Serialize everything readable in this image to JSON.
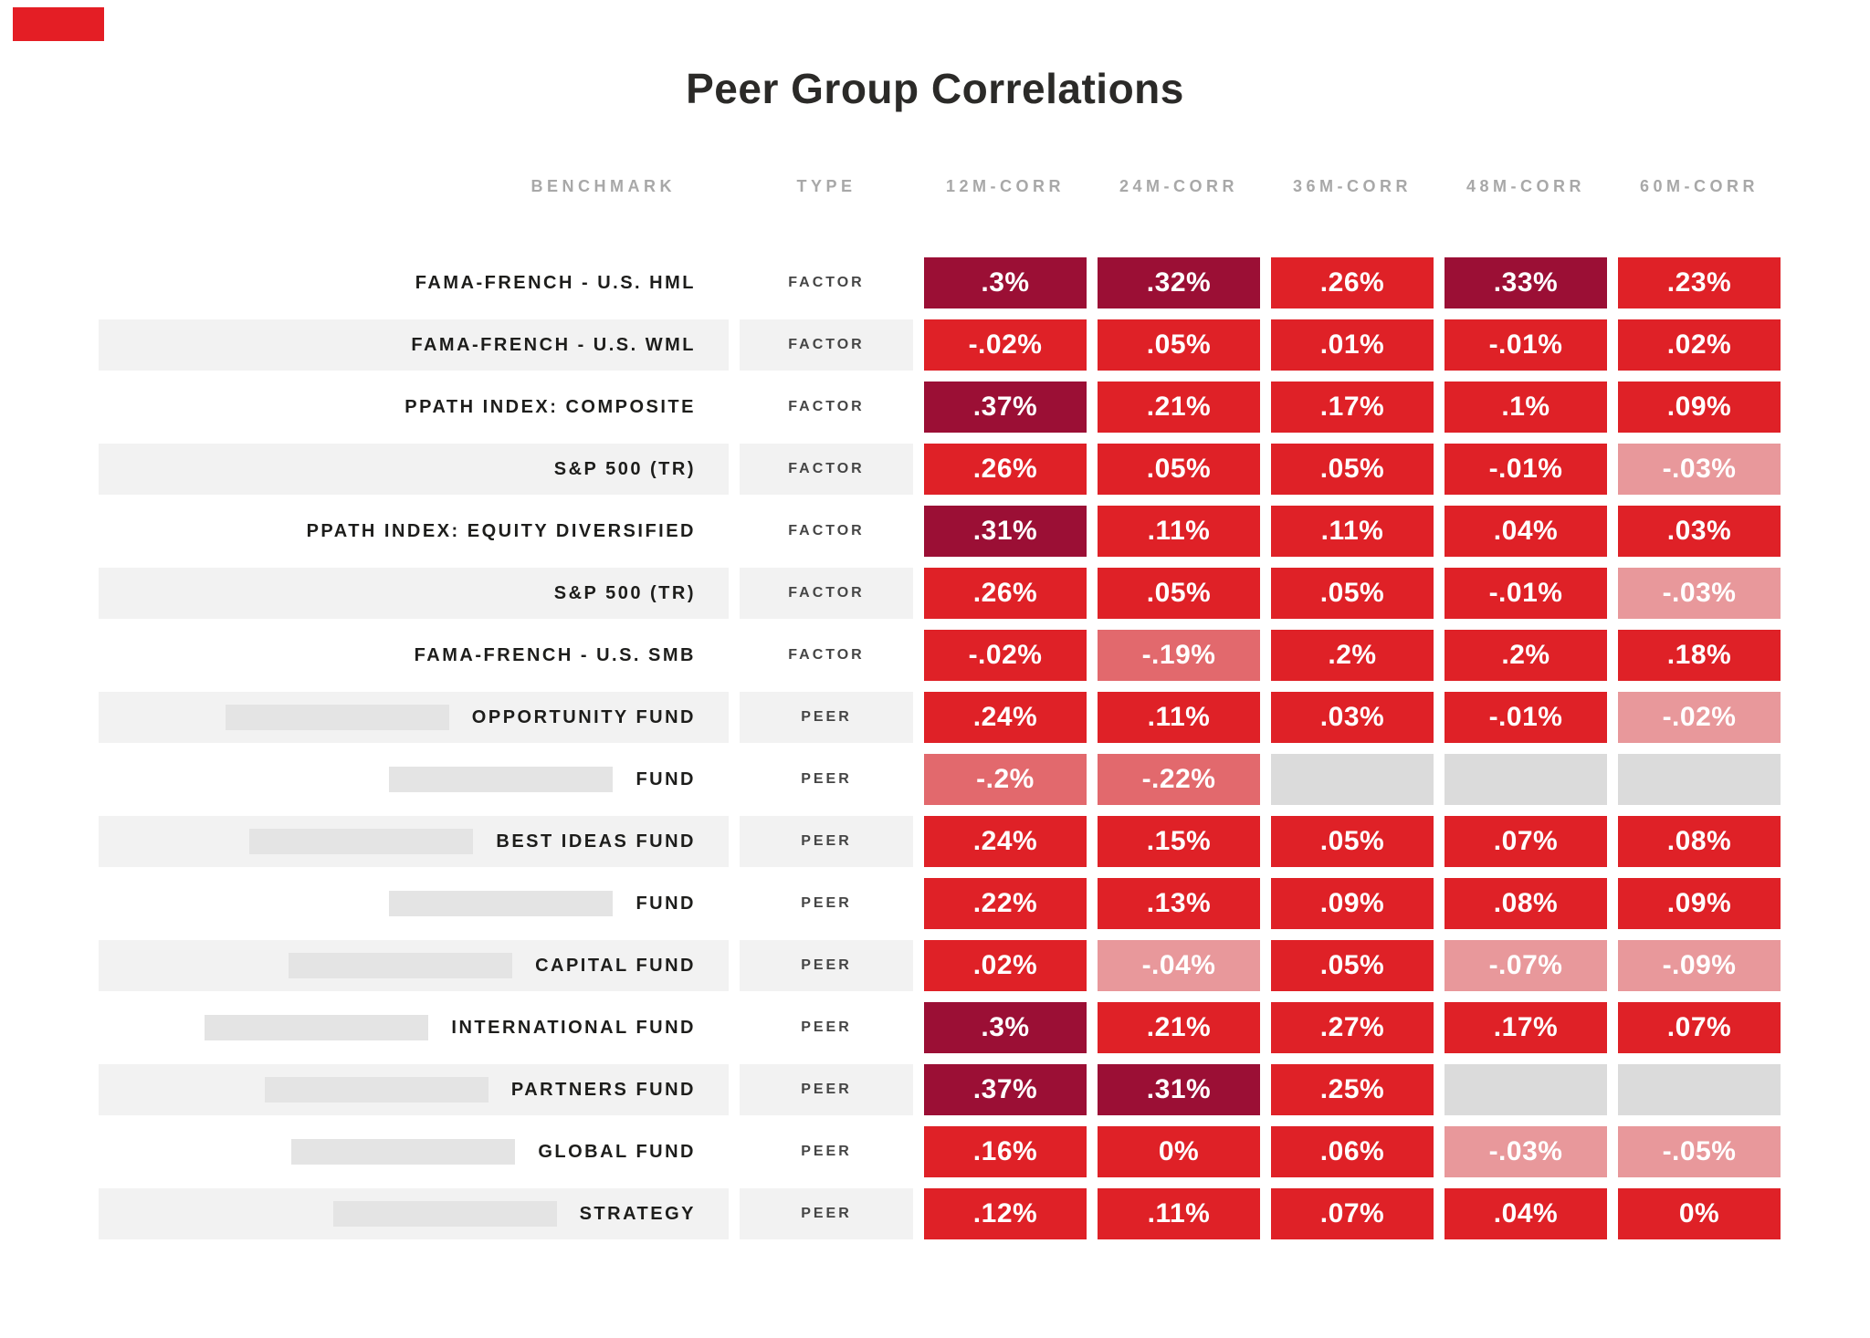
{
  "page": {
    "title": "Peer Group Correlations"
  },
  "colors": {
    "brand_block": "#E41E25",
    "corr_strong_dark": "#9B0F35",
    "corr_red": "#DF2127",
    "corr_pink": "#E2696D",
    "corr_light_pink": "#E8989B",
    "empty_cell_gray": "#DBDBDB",
    "stripe_gray": "#F2F2F2",
    "redaction_gray": "#E4E4E4",
    "header_text": "#A8A8A8",
    "title_text": "#2B2A28"
  },
  "columns": [
    "BENCHMARK",
    "TYPE",
    "12M-CORR",
    "24M-CORR",
    "36M-CORR",
    "48M-CORR",
    "60M-CORR"
  ],
  "rows": [
    {
      "benchmark": "FAMA-FRENCH - U.S. HML",
      "redacted": false,
      "type": "FACTOR",
      "striped": false,
      "values": [
        {
          "label": ".3%",
          "tint": "dark"
        },
        {
          "label": ".32%",
          "tint": "dark"
        },
        {
          "label": ".26%",
          "tint": "red"
        },
        {
          "label": ".33%",
          "tint": "dark"
        },
        {
          "label": ".23%",
          "tint": "red"
        }
      ]
    },
    {
      "benchmark": "FAMA-FRENCH - U.S. WML",
      "redacted": false,
      "type": "FACTOR",
      "striped": true,
      "values": [
        {
          "label": "-.02%",
          "tint": "red"
        },
        {
          "label": ".05%",
          "tint": "red"
        },
        {
          "label": ".01%",
          "tint": "red"
        },
        {
          "label": "-.01%",
          "tint": "red"
        },
        {
          "label": ".02%",
          "tint": "red"
        }
      ]
    },
    {
      "benchmark": "PPATH INDEX: COMPOSITE",
      "redacted": false,
      "type": "FACTOR",
      "striped": false,
      "values": [
        {
          "label": ".37%",
          "tint": "dark"
        },
        {
          "label": ".21%",
          "tint": "red"
        },
        {
          "label": ".17%",
          "tint": "red"
        },
        {
          "label": ".1%",
          "tint": "red"
        },
        {
          "label": ".09%",
          "tint": "red"
        }
      ]
    },
    {
      "benchmark": "S&P 500 (TR)",
      "redacted": false,
      "type": "FACTOR",
      "striped": true,
      "values": [
        {
          "label": ".26%",
          "tint": "red"
        },
        {
          "label": ".05%",
          "tint": "red"
        },
        {
          "label": ".05%",
          "tint": "red"
        },
        {
          "label": "-.01%",
          "tint": "red"
        },
        {
          "label": "-.03%",
          "tint": "lightpink"
        }
      ]
    },
    {
      "benchmark": "PPATH INDEX: EQUITY DIVERSIFIED",
      "redacted": false,
      "type": "FACTOR",
      "striped": false,
      "values": [
        {
          "label": ".31%",
          "tint": "dark"
        },
        {
          "label": ".11%",
          "tint": "red"
        },
        {
          "label": ".11%",
          "tint": "red"
        },
        {
          "label": ".04%",
          "tint": "red"
        },
        {
          "label": ".03%",
          "tint": "red"
        }
      ]
    },
    {
      "benchmark": "S&P 500 (TR)",
      "redacted": false,
      "type": "FACTOR",
      "striped": true,
      "values": [
        {
          "label": ".26%",
          "tint": "red"
        },
        {
          "label": ".05%",
          "tint": "red"
        },
        {
          "label": ".05%",
          "tint": "red"
        },
        {
          "label": "-.01%",
          "tint": "red"
        },
        {
          "label": "-.03%",
          "tint": "lightpink"
        }
      ]
    },
    {
      "benchmark": "FAMA-FRENCH - U.S. SMB",
      "redacted": false,
      "type": "FACTOR",
      "striped": false,
      "values": [
        {
          "label": "-.02%",
          "tint": "red"
        },
        {
          "label": "-.19%",
          "tint": "pink"
        },
        {
          "label": ".2%",
          "tint": "red"
        },
        {
          "label": ".2%",
          "tint": "red"
        },
        {
          "label": ".18%",
          "tint": "red"
        }
      ]
    },
    {
      "benchmark": "OPPORTUNITY FUND",
      "redacted": true,
      "type": "PEER",
      "striped": true,
      "values": [
        {
          "label": ".24%",
          "tint": "red"
        },
        {
          "label": ".11%",
          "tint": "red"
        },
        {
          "label": ".03%",
          "tint": "red"
        },
        {
          "label": "-.01%",
          "tint": "red"
        },
        {
          "label": "-.02%",
          "tint": "lightpink"
        }
      ]
    },
    {
      "benchmark": "FUND",
      "redacted": true,
      "type": "PEER",
      "striped": false,
      "values": [
        {
          "label": "-.2%",
          "tint": "pink"
        },
        {
          "label": "-.22%",
          "tint": "pink"
        },
        {
          "label": "",
          "tint": "empty"
        },
        {
          "label": "",
          "tint": "empty"
        },
        {
          "label": "",
          "tint": "empty"
        }
      ]
    },
    {
      "benchmark": "BEST IDEAS FUND",
      "redacted": true,
      "type": "PEER",
      "striped": true,
      "values": [
        {
          "label": ".24%",
          "tint": "red"
        },
        {
          "label": ".15%",
          "tint": "red"
        },
        {
          "label": ".05%",
          "tint": "red"
        },
        {
          "label": ".07%",
          "tint": "red"
        },
        {
          "label": ".08%",
          "tint": "red"
        }
      ]
    },
    {
      "benchmark": "FUND",
      "redacted": true,
      "type": "PEER",
      "striped": false,
      "values": [
        {
          "label": ".22%",
          "tint": "red"
        },
        {
          "label": ".13%",
          "tint": "red"
        },
        {
          "label": ".09%",
          "tint": "red"
        },
        {
          "label": ".08%",
          "tint": "red"
        },
        {
          "label": ".09%",
          "tint": "red"
        }
      ]
    },
    {
      "benchmark": "CAPITAL FUND",
      "redacted": true,
      "type": "PEER",
      "striped": true,
      "values": [
        {
          "label": ".02%",
          "tint": "red"
        },
        {
          "label": "-.04%",
          "tint": "lightpink"
        },
        {
          "label": ".05%",
          "tint": "red"
        },
        {
          "label": "-.07%",
          "tint": "lightpink"
        },
        {
          "label": "-.09%",
          "tint": "lightpink"
        }
      ]
    },
    {
      "benchmark": "INTERNATIONAL FUND",
      "redacted": true,
      "type": "PEER",
      "striped": false,
      "values": [
        {
          "label": ".3%",
          "tint": "dark"
        },
        {
          "label": ".21%",
          "tint": "red"
        },
        {
          "label": ".27%",
          "tint": "red"
        },
        {
          "label": ".17%",
          "tint": "red"
        },
        {
          "label": ".07%",
          "tint": "red"
        }
      ]
    },
    {
      "benchmark": "PARTNERS FUND",
      "redacted": true,
      "type": "PEER",
      "striped": true,
      "values": [
        {
          "label": ".37%",
          "tint": "dark"
        },
        {
          "label": ".31%",
          "tint": "dark"
        },
        {
          "label": ".25%",
          "tint": "red"
        },
        {
          "label": "",
          "tint": "empty"
        },
        {
          "label": "",
          "tint": "empty"
        }
      ]
    },
    {
      "benchmark": "GLOBAL FUND",
      "redacted": true,
      "type": "PEER",
      "striped": false,
      "values": [
        {
          "label": ".16%",
          "tint": "red"
        },
        {
          "label": "0%",
          "tint": "red"
        },
        {
          "label": ".06%",
          "tint": "red"
        },
        {
          "label": "-.03%",
          "tint": "lightpink"
        },
        {
          "label": "-.05%",
          "tint": "lightpink"
        }
      ]
    },
    {
      "benchmark": "STRATEGY",
      "redacted": true,
      "type": "PEER",
      "striped": true,
      "values": [
        {
          "label": ".12%",
          "tint": "red"
        },
        {
          "label": ".11%",
          "tint": "red"
        },
        {
          "label": ".07%",
          "tint": "red"
        },
        {
          "label": ".04%",
          "tint": "red"
        },
        {
          "label": "0%",
          "tint": "red"
        }
      ]
    }
  ],
  "chart_data": {
    "type": "heatmap",
    "title": "Peer Group Correlations",
    "columns": [
      "12M-CORR",
      "24M-CORR",
      "36M-CORR",
      "48M-CORR",
      "60M-CORR"
    ],
    "row_benchmarks": [
      "FAMA-FRENCH - U.S. HML",
      "FAMA-FRENCH - U.S. WML",
      "PPATH INDEX: COMPOSITE",
      "S&P 500 (TR)",
      "PPATH INDEX: EQUITY DIVERSIFIED",
      "S&P 500 (TR)",
      "FAMA-FRENCH - U.S. SMB",
      "OPPORTUNITY FUND",
      "FUND",
      "BEST IDEAS FUND",
      "FUND",
      "CAPITAL FUND",
      "INTERNATIONAL FUND",
      "PARTNERS FUND",
      "GLOBAL FUND",
      "STRATEGY"
    ],
    "row_types": [
      "FACTOR",
      "FACTOR",
      "FACTOR",
      "FACTOR",
      "FACTOR",
      "FACTOR",
      "FACTOR",
      "PEER",
      "PEER",
      "PEER",
      "PEER",
      "PEER",
      "PEER",
      "PEER",
      "PEER",
      "PEER"
    ],
    "values_pct": [
      [
        0.3,
        0.32,
        0.26,
        0.33,
        0.23
      ],
      [
        -0.02,
        0.05,
        0.01,
        -0.01,
        0.02
      ],
      [
        0.37,
        0.21,
        0.17,
        0.1,
        0.09
      ],
      [
        0.26,
        0.05,
        0.05,
        -0.01,
        -0.03
      ],
      [
        0.31,
        0.11,
        0.11,
        0.04,
        0.03
      ],
      [
        0.26,
        0.05,
        0.05,
        -0.01,
        -0.03
      ],
      [
        -0.02,
        -0.19,
        0.2,
        0.2,
        0.18
      ],
      [
        0.24,
        0.11,
        0.03,
        -0.01,
        -0.02
      ],
      [
        -0.2,
        -0.22,
        null,
        null,
        null
      ],
      [
        0.24,
        0.15,
        0.05,
        0.07,
        0.08
      ],
      [
        0.22,
        0.13,
        0.09,
        0.08,
        0.09
      ],
      [
        0.02,
        -0.04,
        0.05,
        -0.07,
        -0.09
      ],
      [
        0.3,
        0.21,
        0.27,
        0.17,
        0.07
      ],
      [
        0.37,
        0.31,
        0.25,
        null,
        null
      ],
      [
        0.16,
        0,
        0.06,
        -0.03,
        -0.05
      ],
      [
        0.12,
        0.11,
        0.07,
        0.04,
        0
      ]
    ],
    "legend_position": "none",
    "grid": false
  }
}
